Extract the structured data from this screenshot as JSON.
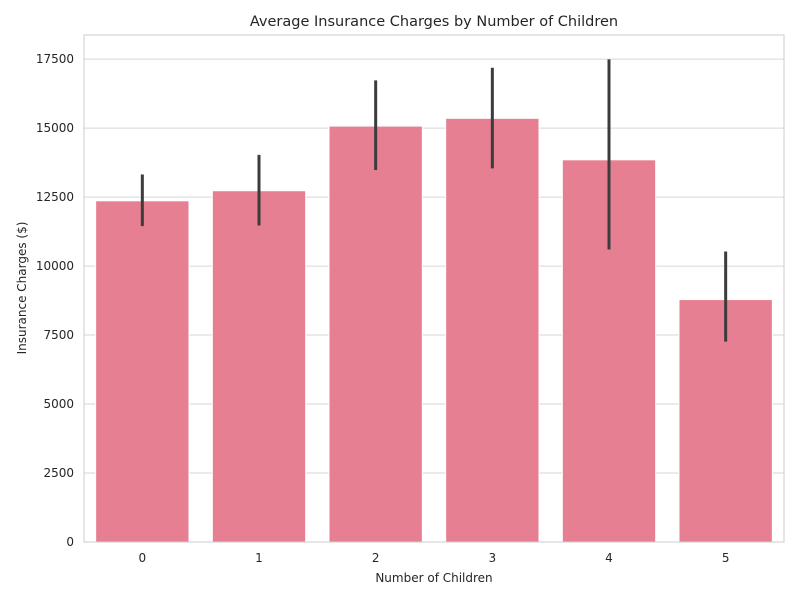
{
  "chart_data": {
    "type": "bar",
    "title": "Average Insurance Charges by Number of Children",
    "xlabel": "Number of Children",
    "ylabel": "Insurance Charges ($)",
    "categories": [
      "0",
      "1",
      "2",
      "3",
      "4",
      "5"
    ],
    "values": [
      12366,
      12731,
      15074,
      15355,
      13851,
      8786
    ],
    "error_low": [
      11450,
      11470,
      13480,
      13540,
      10600,
      7260
    ],
    "error_high": [
      13320,
      14030,
      16730,
      17190,
      17490,
      10530
    ],
    "yticks": [
      0,
      2500,
      5000,
      7500,
      10000,
      12500,
      15000,
      17500
    ],
    "ylim": [
      0,
      18375
    ],
    "grid": true,
    "legend": "none",
    "colors": {
      "bar": "#e67f91",
      "error_bar": "#3c3c3c",
      "grid": "#d6d6d6",
      "spine": "#cccccc"
    }
  }
}
